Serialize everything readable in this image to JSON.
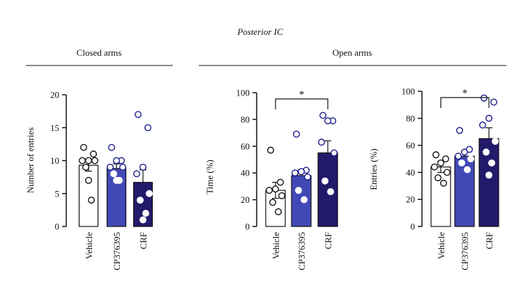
{
  "title": "Posterior IC",
  "group_labels": {
    "closed": "Closed arms",
    "open": "Open arms"
  },
  "colors": {
    "vehicle": "#ffffff",
    "cp376395": "#4149b6",
    "crf": "#241a6b",
    "axis": "#111111",
    "outline": "#111111"
  },
  "chart_data": [
    {
      "type": "bar",
      "id": "closed-entries",
      "title": "Closed arms",
      "ylabel": "Number of entries",
      "ylim": [
        0,
        20
      ],
      "yticks": [
        "0",
        "5",
        "10",
        "15",
        "20"
      ],
      "categories": [
        "Vehicle",
        "CP376395",
        "CRF"
      ],
      "values": [
        9.3,
        8.8,
        6.7
      ],
      "errors": [
        0.9,
        0.7,
        1.9
      ],
      "points": [
        [
          12,
          11,
          10,
          10,
          10,
          9,
          4,
          7
        ],
        [
          12,
          10,
          10,
          9,
          9,
          8,
          7,
          7
        ],
        [
          17,
          15,
          9,
          8,
          5,
          4,
          2,
          1
        ]
      ],
      "significance": null
    },
    {
      "type": "bar",
      "id": "open-time",
      "title": "Open arms",
      "ylabel": "Time (%)",
      "ylim": [
        0,
        100
      ],
      "yticks": [
        "0",
        "20",
        "40",
        "60",
        "80",
        "100"
      ],
      "categories": [
        "Vehicle",
        "CP376395",
        "CRF"
      ],
      "values": [
        27,
        38,
        55
      ],
      "errors": [
        6,
        4,
        9
      ],
      "points": [
        [
          57,
          33,
          28,
          27,
          23,
          18,
          11
        ],
        [
          69,
          42,
          41,
          40,
          37,
          27,
          20
        ],
        [
          83,
          79,
          79,
          63,
          55,
          34,
          26
        ]
      ],
      "significance": {
        "from": 0,
        "to": 2,
        "label": "*"
      }
    },
    {
      "type": "bar",
      "id": "open-entries",
      "ylabel": "Entries (%)",
      "ylim": [
        0,
        100
      ],
      "yticks": [
        "0",
        "20",
        "40",
        "60",
        "80",
        "100"
      ],
      "categories": [
        "Vehicle",
        "CP376395",
        "CRF"
      ],
      "values": [
        44,
        52,
        65
      ],
      "errors": [
        4,
        4,
        8
      ],
      "points": [
        [
          53,
          50,
          47,
          44,
          40,
          36,
          32
        ],
        [
          71,
          57,
          55,
          52,
          50,
          47,
          42
        ],
        [
          95,
          92,
          80,
          75,
          63,
          55,
          47,
          38
        ]
      ],
      "significance": {
        "from": 0,
        "to": 2,
        "label": "*"
      }
    }
  ]
}
